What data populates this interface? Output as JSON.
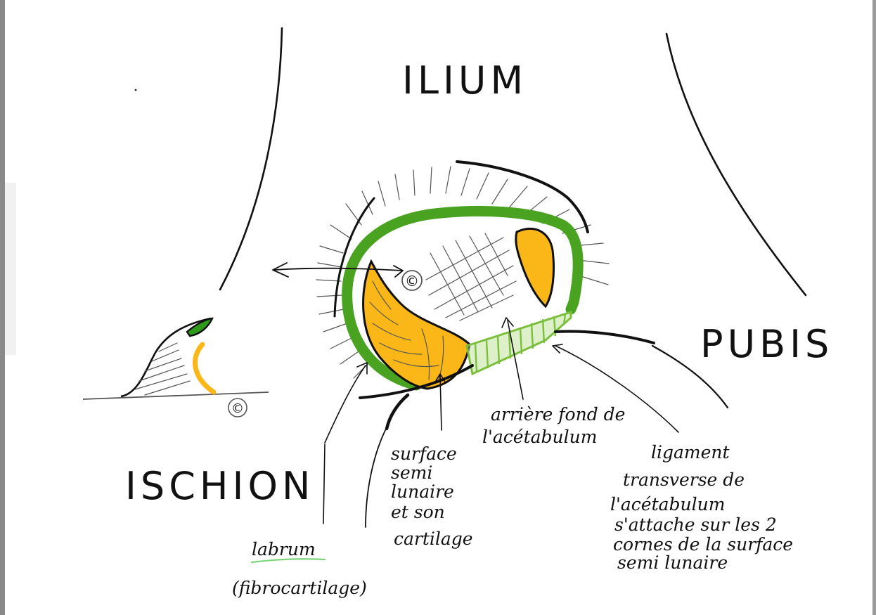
{
  "regions": {
    "ilium": "ILIUM",
    "pubis": "PUBIS",
    "ischion": "ISCHION"
  },
  "markers": {
    "cartilage_symbol": "©"
  },
  "annotations": {
    "labrum": "labrum",
    "labrum_note": "(fibrocartilage)",
    "surface_lines": [
      "surface",
      "semi",
      "lunaire",
      "et son",
      "cartilage"
    ],
    "arriere_fond_lines": [
      "arrière fond de",
      "l'acétabulum"
    ],
    "ligament_lines": [
      "ligament",
      "transverse de",
      "l'acétabulum",
      "s'attache sur les 2",
      "cornes de la surface",
      "semi lunaire"
    ]
  },
  "colors": {
    "labrum_green": "#4aa320",
    "ligament_green": "#7cbf3c",
    "cartilage_yellow": "#fbb718",
    "ink": "#111111",
    "frame_gray": "#8a8a8a"
  }
}
